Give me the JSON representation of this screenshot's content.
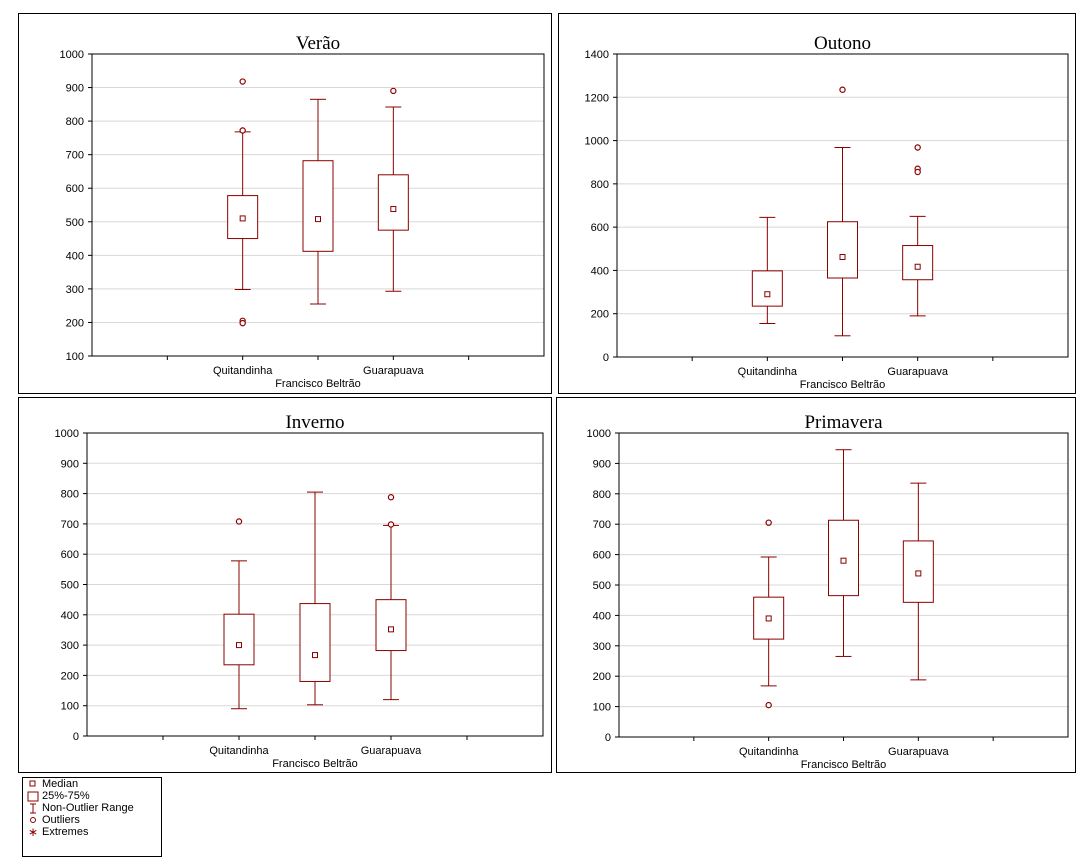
{
  "colors": {
    "series": "#8b0000",
    "grid": "#d8d8d8",
    "axis": "#000000"
  },
  "chart_data": [
    {
      "type": "box",
      "title": "Verão",
      "xlabel": "Francisco Beltrão",
      "x_tick_labels": [
        "Quitandinha",
        "",
        "Guarapuava"
      ],
      "ylim": [
        100,
        1000
      ],
      "yticks": [
        100,
        200,
        300,
        400,
        500,
        600,
        700,
        800,
        900,
        1000
      ],
      "grid": true,
      "boxes": [
        {
          "q1": 450,
          "median": 510,
          "q3": 578,
          "whisker_low": 298,
          "whisker_high": 768,
          "outliers": [
            918,
            772,
            205,
            198
          ]
        },
        {
          "q1": 412,
          "median": 508,
          "q3": 682,
          "whisker_low": 255,
          "whisker_high": 865,
          "outliers": []
        },
        {
          "q1": 475,
          "median": 538,
          "q3": 640,
          "whisker_low": 293,
          "whisker_high": 842,
          "outliers": [
            890
          ]
        }
      ]
    },
    {
      "type": "box",
      "title": "Outono",
      "xlabel": "Francisco Beltrão",
      "x_tick_labels": [
        "Quitandinha",
        "",
        "Guarapuava"
      ],
      "ylim": [
        0,
        1400
      ],
      "yticks": [
        0,
        200,
        400,
        600,
        800,
        1000,
        1200,
        1400
      ],
      "grid": true,
      "boxes": [
        {
          "q1": 235,
          "median": 290,
          "q3": 398,
          "whisker_low": 155,
          "whisker_high": 645,
          "outliers": []
        },
        {
          "q1": 365,
          "median": 462,
          "q3": 625,
          "whisker_low": 98,
          "whisker_high": 968,
          "outliers": [
            1235
          ]
        },
        {
          "q1": 357,
          "median": 417,
          "q3": 515,
          "whisker_low": 190,
          "whisker_high": 650,
          "outliers": [
            968,
            870,
            855
          ]
        }
      ]
    },
    {
      "type": "box",
      "title": "Inverno",
      "xlabel": "Francisco Beltrão",
      "x_tick_labels": [
        "Quitandinha",
        "",
        "Guarapuava"
      ],
      "ylim": [
        0,
        1000
      ],
      "yticks": [
        0,
        100,
        200,
        300,
        400,
        500,
        600,
        700,
        800,
        900,
        1000
      ],
      "grid": true,
      "boxes": [
        {
          "q1": 235,
          "median": 300,
          "q3": 402,
          "whisker_low": 90,
          "whisker_high": 578,
          "outliers": [
            708
          ]
        },
        {
          "q1": 180,
          "median": 267,
          "q3": 437,
          "whisker_low": 103,
          "whisker_high": 805,
          "outliers": []
        },
        {
          "q1": 282,
          "median": 352,
          "q3": 450,
          "whisker_low": 120,
          "whisker_high": 695,
          "outliers": [
            788,
            698
          ]
        }
      ]
    },
    {
      "type": "box",
      "title": "Primavera",
      "xlabel": "Francisco Beltrão",
      "x_tick_labels": [
        "Quitandinha",
        "",
        "Guarapuava"
      ],
      "ylim": [
        0,
        1000
      ],
      "yticks": [
        0,
        100,
        200,
        300,
        400,
        500,
        600,
        700,
        800,
        900,
        1000
      ],
      "grid": true,
      "boxes": [
        {
          "q1": 322,
          "median": 390,
          "q3": 460,
          "whisker_low": 168,
          "whisker_high": 592,
          "outliers": [
            705,
            105
          ]
        },
        {
          "q1": 465,
          "median": 580,
          "q3": 713,
          "whisker_low": 265,
          "whisker_high": 945,
          "outliers": []
        },
        {
          "q1": 443,
          "median": 538,
          "q3": 645,
          "whisker_low": 188,
          "whisker_high": 835,
          "outliers": []
        }
      ]
    }
  ],
  "legend": {
    "items": [
      {
        "label": "Median",
        "symbol": "median"
      },
      {
        "label": "25%-75%",
        "symbol": "box"
      },
      {
        "label": "Non-Outlier Range",
        "symbol": "whisker"
      },
      {
        "label": "Outliers",
        "symbol": "outlier"
      },
      {
        "label": "Extremes",
        "symbol": "extreme"
      }
    ]
  }
}
